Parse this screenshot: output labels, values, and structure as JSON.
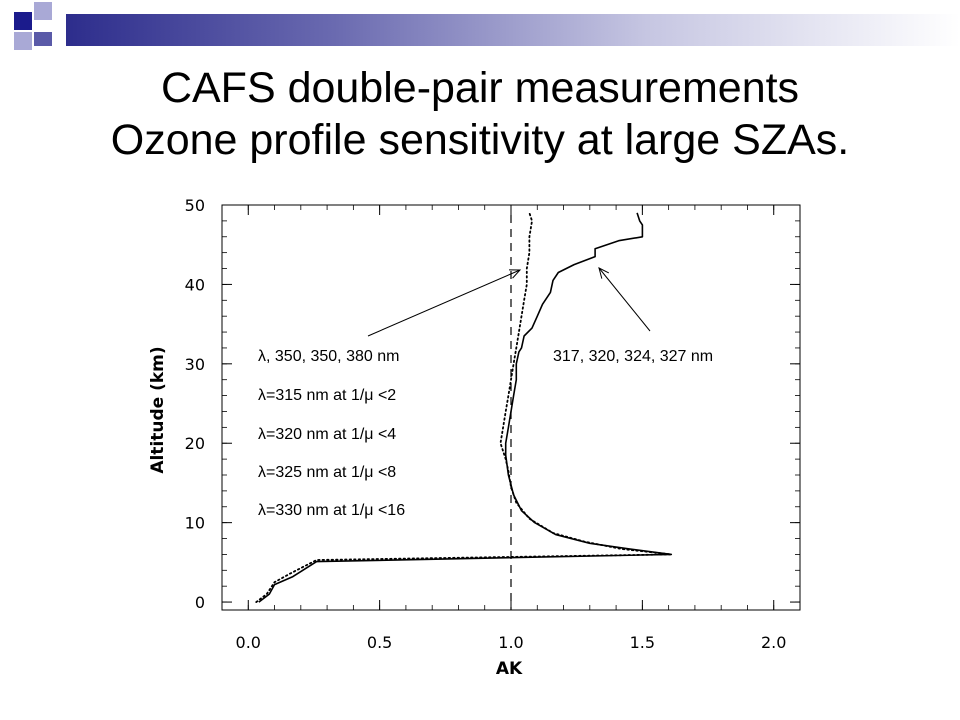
{
  "slide": {
    "title_line1": "CAFS double-pair measurements",
    "title_line2": "Ozone profile sensitivity at large SZAs."
  },
  "colors": {
    "bar_dark": "#2d2d8c",
    "bar_light": "#c6c6e2",
    "square_dark": "#1b1b8c",
    "square_light": "#a9a9d6"
  },
  "chart_data": {
    "type": "line",
    "xlabel": "AK",
    "ylabel": "Altitude (km)",
    "xlim": [
      -0.1,
      2.1
    ],
    "ylim": [
      -1,
      50
    ],
    "x_ticks": [
      "0.0",
      "0.5",
      "1.0",
      "1.5",
      "2.0"
    ],
    "y_ticks": [
      "0",
      "10",
      "20",
      "30",
      "40",
      "50"
    ],
    "reference_line_x": 1.0,
    "series": [
      {
        "style": "solid",
        "points": [
          [
            0.04,
            0
          ],
          [
            0.08,
            1
          ],
          [
            0.1,
            2.2
          ],
          [
            0.17,
            3.2
          ],
          [
            0.26,
            5.1
          ],
          [
            1.61,
            6.0
          ],
          [
            1.45,
            6.7
          ],
          [
            1.3,
            7.4
          ],
          [
            1.17,
            8.5
          ],
          [
            1.09,
            10
          ],
          [
            1.04,
            11.5
          ],
          [
            1.01,
            13.5
          ],
          [
            0.99,
            16
          ],
          [
            0.98,
            18.5
          ],
          [
            0.98,
            20
          ],
          [
            0.99,
            22
          ],
          [
            1.0,
            24
          ],
          [
            1.01,
            26
          ],
          [
            1.02,
            28
          ],
          [
            1.02,
            30
          ],
          [
            1.03,
            31.5
          ],
          [
            1.04,
            32
          ],
          [
            1.05,
            33.5
          ],
          [
            1.08,
            34.5
          ],
          [
            1.1,
            36
          ],
          [
            1.12,
            37.5
          ],
          [
            1.15,
            39
          ],
          [
            1.16,
            40.5
          ],
          [
            1.18,
            41.5
          ],
          [
            1.24,
            42.5
          ],
          [
            1.28,
            43
          ],
          [
            1.32,
            43.5
          ],
          [
            1.32,
            44.5
          ],
          [
            1.41,
            45.5
          ],
          [
            1.5,
            46
          ],
          [
            1.5,
            47.5
          ],
          [
            1.49,
            48
          ],
          [
            1.48,
            49
          ]
        ]
      },
      {
        "style": "dotted",
        "points": [
          [
            0.03,
            0
          ],
          [
            0.07,
            1
          ],
          [
            0.1,
            2.5
          ],
          [
            0.16,
            3.6
          ],
          [
            0.26,
            5.3
          ],
          [
            1.61,
            6.0
          ],
          [
            1.42,
            6.7
          ],
          [
            1.28,
            7.6
          ],
          [
            1.16,
            8.7
          ],
          [
            1.07,
            10.5
          ],
          [
            1.02,
            12.5
          ],
          [
            1.0,
            14.5
          ],
          [
            0.99,
            16.5
          ],
          [
            0.98,
            18
          ],
          [
            0.96,
            20
          ],
          [
            0.97,
            22
          ],
          [
            0.98,
            24
          ],
          [
            0.99,
            26
          ],
          [
            1.0,
            28
          ],
          [
            1.01,
            30
          ],
          [
            1.02,
            32
          ],
          [
            1.03,
            34
          ],
          [
            1.04,
            36
          ],
          [
            1.05,
            38
          ],
          [
            1.06,
            40
          ],
          [
            1.06,
            42
          ],
          [
            1.07,
            44
          ],
          [
            1.07,
            46
          ],
          [
            1.08,
            48
          ],
          [
            1.07,
            49
          ]
        ]
      }
    ],
    "annotations_left": [
      "λ, 350, 350, 380 nm",
      "λ=315 nm at 1/μ <2",
      "λ=320 nm at 1/μ <4",
      "λ=325 nm at 1/μ <8",
      "λ=330 nm at 1/μ <16"
    ],
    "annotation_right": "317, 320, 324, 327 nm"
  }
}
